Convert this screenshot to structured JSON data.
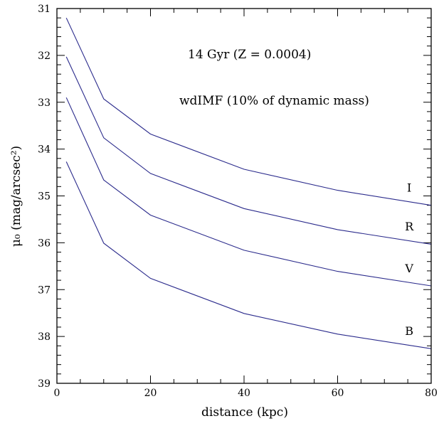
{
  "chart_data": {
    "type": "line",
    "xlabel": "distance (kpc)",
    "ylabel": "μ₀ (mag/arcsec²)",
    "xlim": [
      0,
      80
    ],
    "ylim": [
      31,
      39
    ],
    "y_inverted": true,
    "grid": false,
    "x_ticks": [
      0,
      20,
      40,
      60,
      80
    ],
    "y_ticks": [
      31,
      32,
      33,
      34,
      35,
      36,
      37,
      38,
      39
    ],
    "annotations": [
      "14 Gyr (Z = 0.0004)",
      "wdIMF (10% of dynamic mass)"
    ],
    "line_color": "#2b2b8c",
    "series": [
      {
        "name": "I",
        "x": [
          2,
          10,
          20,
          40,
          60,
          80
        ],
        "values": [
          31.2,
          32.93,
          33.68,
          34.43,
          34.88,
          35.2
        ]
      },
      {
        "name": "R",
        "x": [
          2,
          10,
          20,
          40,
          60,
          80
        ],
        "values": [
          32.03,
          33.76,
          34.52,
          35.27,
          35.72,
          36.03
        ]
      },
      {
        "name": "V",
        "x": [
          2,
          10,
          20,
          40,
          60,
          80
        ],
        "values": [
          32.9,
          34.66,
          35.41,
          36.16,
          36.61,
          36.92
        ]
      },
      {
        "name": "B",
        "x": [
          2,
          10,
          20,
          40,
          60,
          80
        ],
        "values": [
          34.27,
          36.01,
          36.76,
          37.51,
          37.95,
          38.26
        ]
      }
    ]
  }
}
